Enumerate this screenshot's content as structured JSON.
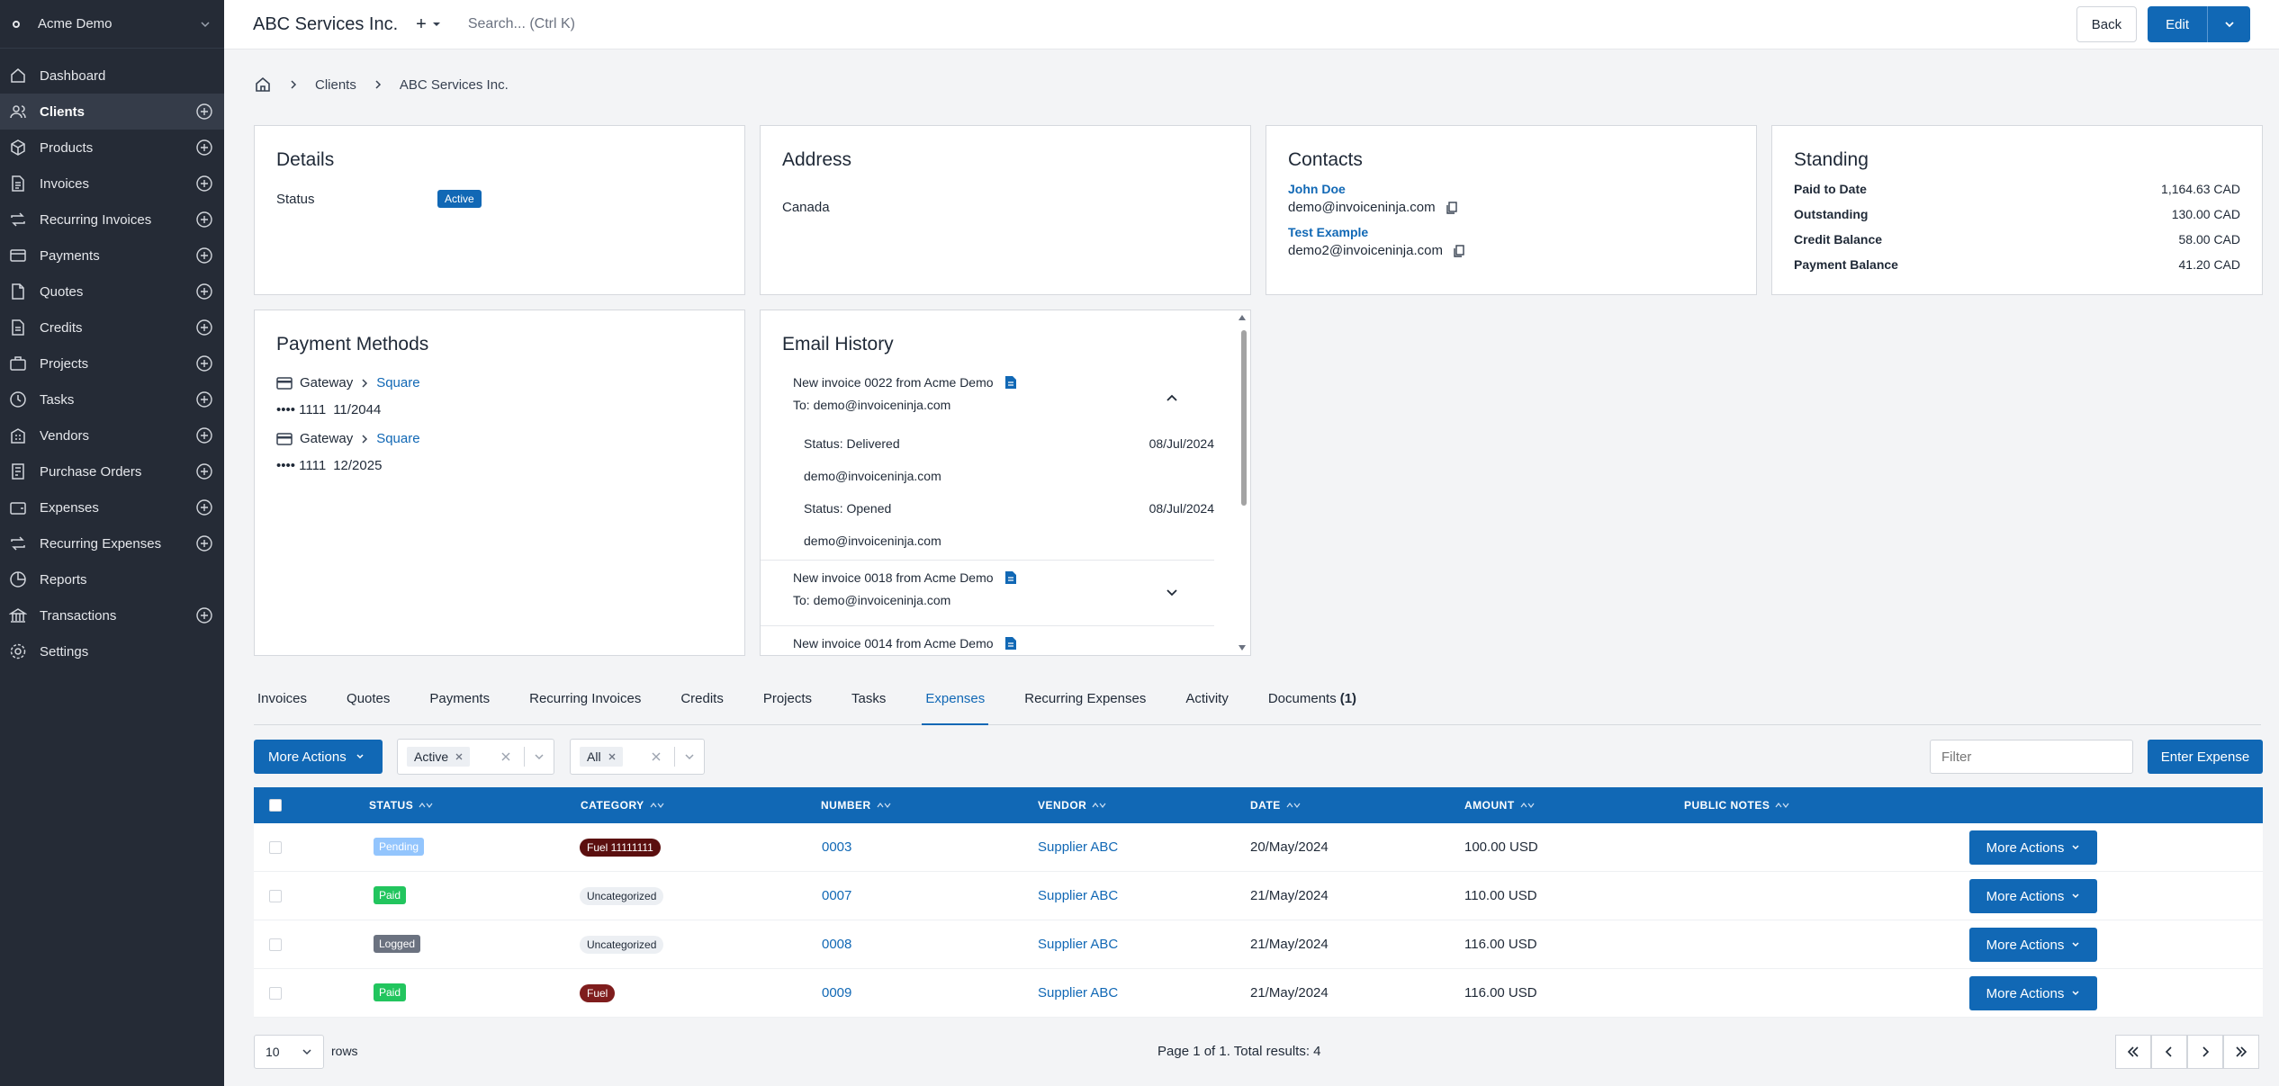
{
  "sidebar": {
    "company": "Acme Demo",
    "items": [
      {
        "label": "Dashboard",
        "icon": "home-icon",
        "add": false,
        "active": false
      },
      {
        "label": "Clients",
        "icon": "users-icon",
        "add": true,
        "active": true
      },
      {
        "label": "Products",
        "icon": "box-icon",
        "add": true,
        "active": false
      },
      {
        "label": "Invoices",
        "icon": "file-text-icon",
        "add": true,
        "active": false
      },
      {
        "label": "Recurring Invoices",
        "icon": "repeat-icon",
        "add": true,
        "active": false
      },
      {
        "label": "Payments",
        "icon": "credit-card-icon",
        "add": true,
        "active": false
      },
      {
        "label": "Quotes",
        "icon": "file-icon",
        "add": true,
        "active": false
      },
      {
        "label": "Credits",
        "icon": "credit-file-icon",
        "add": true,
        "active": false
      },
      {
        "label": "Projects",
        "icon": "briefcase-icon",
        "add": true,
        "active": false
      },
      {
        "label": "Tasks",
        "icon": "clock-icon",
        "add": true,
        "active": false
      },
      {
        "label": "Vendors",
        "icon": "building-icon",
        "add": true,
        "active": false
      },
      {
        "label": "Purchase Orders",
        "icon": "purchase-order-icon",
        "add": true,
        "active": false
      },
      {
        "label": "Expenses",
        "icon": "wallet-icon",
        "add": true,
        "active": false
      },
      {
        "label": "Recurring Expenses",
        "icon": "repeat-icon",
        "add": true,
        "active": false
      },
      {
        "label": "Reports",
        "icon": "chart-pie-icon",
        "add": false,
        "active": false
      },
      {
        "label": "Transactions",
        "icon": "bank-icon",
        "add": true,
        "active": false
      },
      {
        "label": "Settings",
        "icon": "gear-icon",
        "add": false,
        "active": false
      }
    ]
  },
  "topbar": {
    "title": "ABC Services Inc.",
    "plus": "+",
    "search_placeholder": "Search... (Ctrl K)",
    "back": "Back",
    "edit": "Edit"
  },
  "breadcrumb": {
    "clients": "Clients",
    "current": "ABC Services Inc."
  },
  "details": {
    "title": "Details",
    "status_label": "Status",
    "status_value": "Active"
  },
  "address": {
    "title": "Address",
    "country": "Canada"
  },
  "contacts": {
    "title": "Contacts",
    "list": [
      {
        "name": "John Doe",
        "email": "demo@invoiceninja.com"
      },
      {
        "name": "Test Example",
        "email": "demo2@invoiceninja.com"
      }
    ]
  },
  "standing": {
    "title": "Standing",
    "rows": [
      {
        "label": "Paid to Date",
        "value": "1,164.63 CAD"
      },
      {
        "label": "Outstanding",
        "value": "130.00 CAD"
      },
      {
        "label": "Credit Balance",
        "value": "58.00 CAD"
      },
      {
        "label": "Payment Balance",
        "value": "41.20 CAD"
      }
    ]
  },
  "payment_methods": {
    "title": "Payment Methods",
    "items": [
      {
        "gateway": "Gateway",
        "provider": "Square",
        "card": "•••• 1111",
        "exp": "11/2044"
      },
      {
        "gateway": "Gateway",
        "provider": "Square",
        "card": "•••• 1111",
        "exp": "12/2025"
      }
    ]
  },
  "email_history": {
    "title": "Email History",
    "items": [
      {
        "subject": "New invoice 0022 from Acme Demo",
        "to": "To: demo@invoiceninja.com"
      },
      {
        "subject": "New invoice 0018 from Acme Demo",
        "to": "To: demo@invoiceninja.com"
      },
      {
        "subject": "New invoice 0014 from Acme Demo"
      }
    ],
    "events": [
      {
        "status": "Status: Delivered",
        "date": "08/Jul/2024",
        "email": "demo@invoiceninja.com"
      },
      {
        "status": "Status: Opened",
        "date": "08/Jul/2024",
        "email": "demo@invoiceninja.com"
      }
    ]
  },
  "tabs": [
    {
      "label": "Invoices"
    },
    {
      "label": "Quotes"
    },
    {
      "label": "Payments"
    },
    {
      "label": "Recurring Invoices"
    },
    {
      "label": "Credits"
    },
    {
      "label": "Projects"
    },
    {
      "label": "Tasks"
    },
    {
      "label": "Expenses",
      "active": true
    },
    {
      "label": "Recurring Expenses"
    },
    {
      "label": "Activity"
    },
    {
      "label": "Documents",
      "count": "(1)"
    }
  ],
  "toolbar": {
    "more_actions": "More Actions",
    "status_chip": "Active",
    "type_chip": "All",
    "filter_placeholder": "Filter",
    "enter_expense": "Enter Expense"
  },
  "table": {
    "headers": [
      "STATUS",
      "CATEGORY",
      "NUMBER",
      "VENDOR",
      "DATE",
      "AMOUNT",
      "PUBLIC NOTES"
    ],
    "rows": [
      {
        "status": "Pending",
        "status_color": "#93c5fd",
        "category": "Fuel 11111111",
        "category_bg": "#5b0f0f",
        "category_fg": "#ffffff",
        "number": "0003",
        "vendor": "Supplier ABC",
        "date": "20/May/2024",
        "amount": "100.00 USD",
        "action": "More Actions"
      },
      {
        "status": "Paid",
        "status_color": "#22c55e",
        "category": "Uncategorized",
        "category_bg": "#eceff3",
        "category_fg": "#1f2937",
        "number": "0007",
        "vendor": "Supplier ABC",
        "date": "21/May/2024",
        "amount": "110.00 USD",
        "action": "More Actions"
      },
      {
        "status": "Logged",
        "status_color": "#6b7280",
        "category": "Uncategorized",
        "category_bg": "#eceff3",
        "category_fg": "#1f2937",
        "number": "0008",
        "vendor": "Supplier ABC",
        "date": "21/May/2024",
        "amount": "116.00 USD",
        "action": "More Actions"
      },
      {
        "status": "Paid",
        "status_color": "#22c55e",
        "category": "Fuel",
        "category_bg": "#7f1d1d",
        "category_fg": "#ffffff",
        "number": "0009",
        "vendor": "Supplier ABC",
        "date": "21/May/2024",
        "amount": "116.00 USD",
        "action": "More Actions"
      }
    ]
  },
  "footer": {
    "per_page": "10",
    "rows_label": "rows",
    "summary": "Page 1 of 1. Total results: 4"
  }
}
